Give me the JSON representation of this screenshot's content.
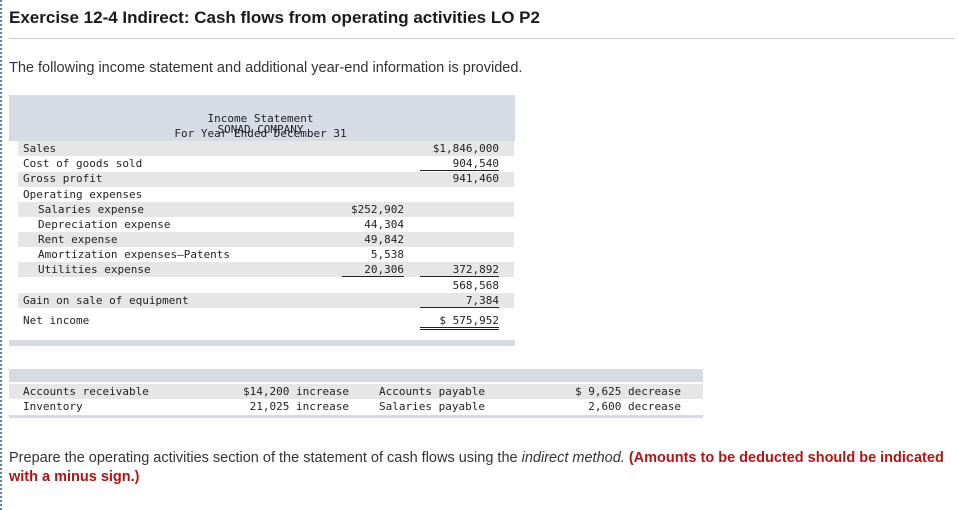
{
  "title": "Exercise 12-4 Indirect: Cash flows from operating activities LO P2",
  "intro": "The following income statement and additional year-end information is provided.",
  "statement": {
    "company": "SONAD COMPANY",
    "name": "Income Statement",
    "period": "For Year Ended December 31",
    "sales": {
      "label": "Sales",
      "amount": "$1,846,000"
    },
    "cogs": {
      "label": "Cost of goods sold",
      "amount": "904,540"
    },
    "gross_profit": {
      "label": "Gross profit",
      "amount": "941,460"
    },
    "operating_expenses_label": "Operating expenses",
    "expenses": [
      {
        "label": "Salaries expense",
        "amount": "$252,902"
      },
      {
        "label": "Depreciation expense",
        "amount": "44,304"
      },
      {
        "label": "Rent expense",
        "amount": "49,842"
      },
      {
        "label": "Amortization expenses—Patents",
        "amount": "5,538"
      },
      {
        "label": "Utilities expense",
        "amount": "20,306"
      }
    ],
    "total_expenses": "372,892",
    "subtotal": "568,568",
    "gain": {
      "label": "Gain on sale of equipment",
      "amount": "7,384"
    },
    "net_income": {
      "label": "Net income",
      "amount": "$ 575,952"
    }
  },
  "additional": [
    {
      "label": "Accounts receivable",
      "value": "$14,200 increase"
    },
    {
      "label": "Inventory",
      "value": "21,025 increase"
    },
    {
      "label": "Accounts payable",
      "value": "$ 9,625 decrease"
    },
    {
      "label": "Salaries payable",
      "value": "2,600 decrease"
    }
  ],
  "instructions": {
    "part1": "Prepare the operating activities section of the statement of cash flows using the ",
    "em": "indirect method.",
    "note": "(Amounts to be deducted should be indicated with a minus sign.)"
  }
}
